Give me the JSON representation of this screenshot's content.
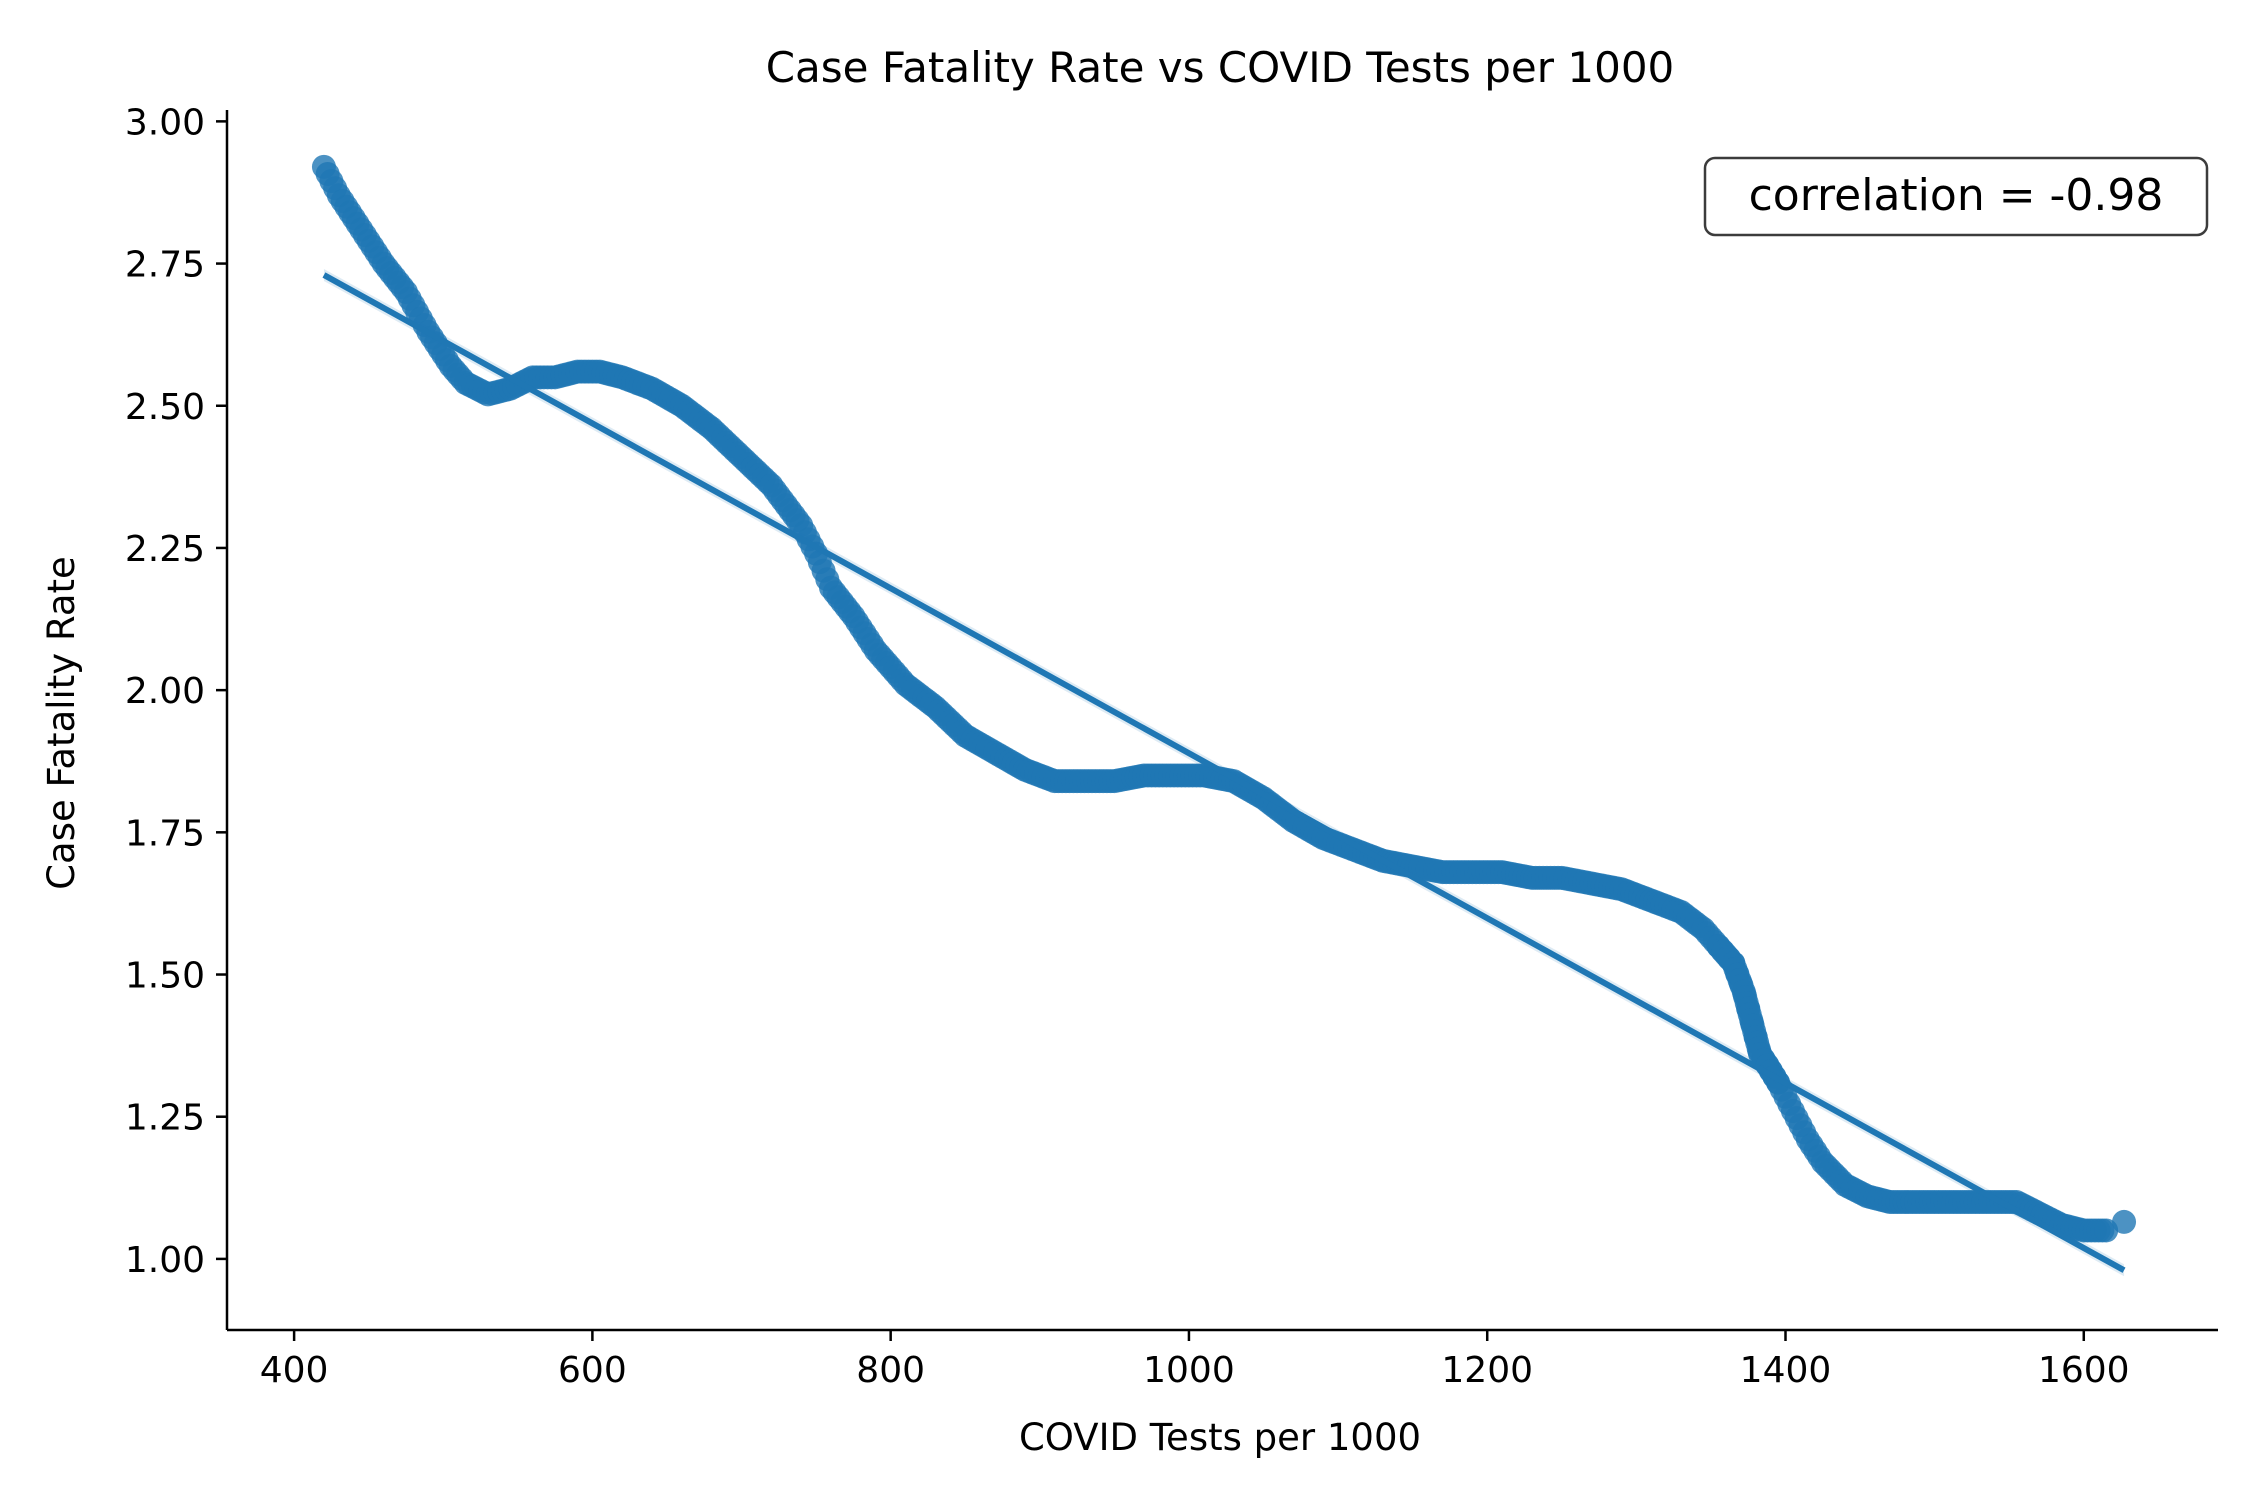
{
  "chart_data": {
    "type": "scatter",
    "title": "Case Fatality Rate vs COVID Tests per 1000",
    "xlabel": "COVID Tests per 1000",
    "ylabel": "Case Fatality Rate",
    "xlim": [
      355,
      1690
    ],
    "ylim": [
      0.875,
      3.02
    ],
    "xticks": [
      "400",
      "600",
      "800",
      "1000",
      "1200",
      "1400",
      "1600"
    ],
    "yticks": [
      "1.00",
      "1.25",
      "1.50",
      "1.75",
      "2.00",
      "2.25",
      "2.50",
      "2.75",
      "3.00"
    ],
    "grid": false,
    "annotation": "correlation = -0.98",
    "annotation_position": "top-right",
    "point_color": "#1f77b4",
    "line_color": "#1f77b4",
    "regression": {
      "x": [
        420,
        1627
      ],
      "y": [
        2.73,
        0.98
      ]
    },
    "curve_anchors": {
      "x": [
        420,
        430,
        440,
        450,
        460,
        475,
        490,
        505,
        515,
        530,
        545,
        560,
        575,
        590,
        605,
        620,
        640,
        660,
        680,
        700,
        720,
        740,
        750,
        760,
        775,
        790,
        810,
        830,
        850,
        870,
        890,
        910,
        930,
        950,
        970,
        990,
        1010,
        1030,
        1050,
        1070,
        1090,
        1110,
        1130,
        1150,
        1170,
        1190,
        1210,
        1230,
        1250,
        1270,
        1290,
        1310,
        1330,
        1345,
        1355,
        1365,
        1372,
        1378,
        1383,
        1388,
        1395,
        1405,
        1415,
        1425,
        1440,
        1455,
        1470,
        1485,
        1500,
        1520,
        1540,
        1555,
        1570,
        1585,
        1600,
        1615
      ],
      "y": [
        2.92,
        2.87,
        2.83,
        2.79,
        2.75,
        2.7,
        2.63,
        2.57,
        2.54,
        2.52,
        2.53,
        2.55,
        2.55,
        2.56,
        2.56,
        2.55,
        2.53,
        2.5,
        2.46,
        2.41,
        2.36,
        2.29,
        2.24,
        2.18,
        2.13,
        2.07,
        2.01,
        1.97,
        1.92,
        1.89,
        1.86,
        1.84,
        1.84,
        1.84,
        1.85,
        1.85,
        1.85,
        1.84,
        1.81,
        1.77,
        1.74,
        1.72,
        1.7,
        1.69,
        1.68,
        1.68,
        1.68,
        1.67,
        1.67,
        1.66,
        1.65,
        1.63,
        1.61,
        1.58,
        1.55,
        1.52,
        1.47,
        1.41,
        1.36,
        1.34,
        1.31,
        1.26,
        1.21,
        1.17,
        1.13,
        1.11,
        1.1,
        1.1,
        1.1,
        1.1,
        1.1,
        1.1,
        1.08,
        1.06,
        1.05,
        1.05
      ],
      "step": 2.5
    },
    "extra_points": [
      {
        "x": 1627,
        "y": 1.065
      }
    ]
  }
}
